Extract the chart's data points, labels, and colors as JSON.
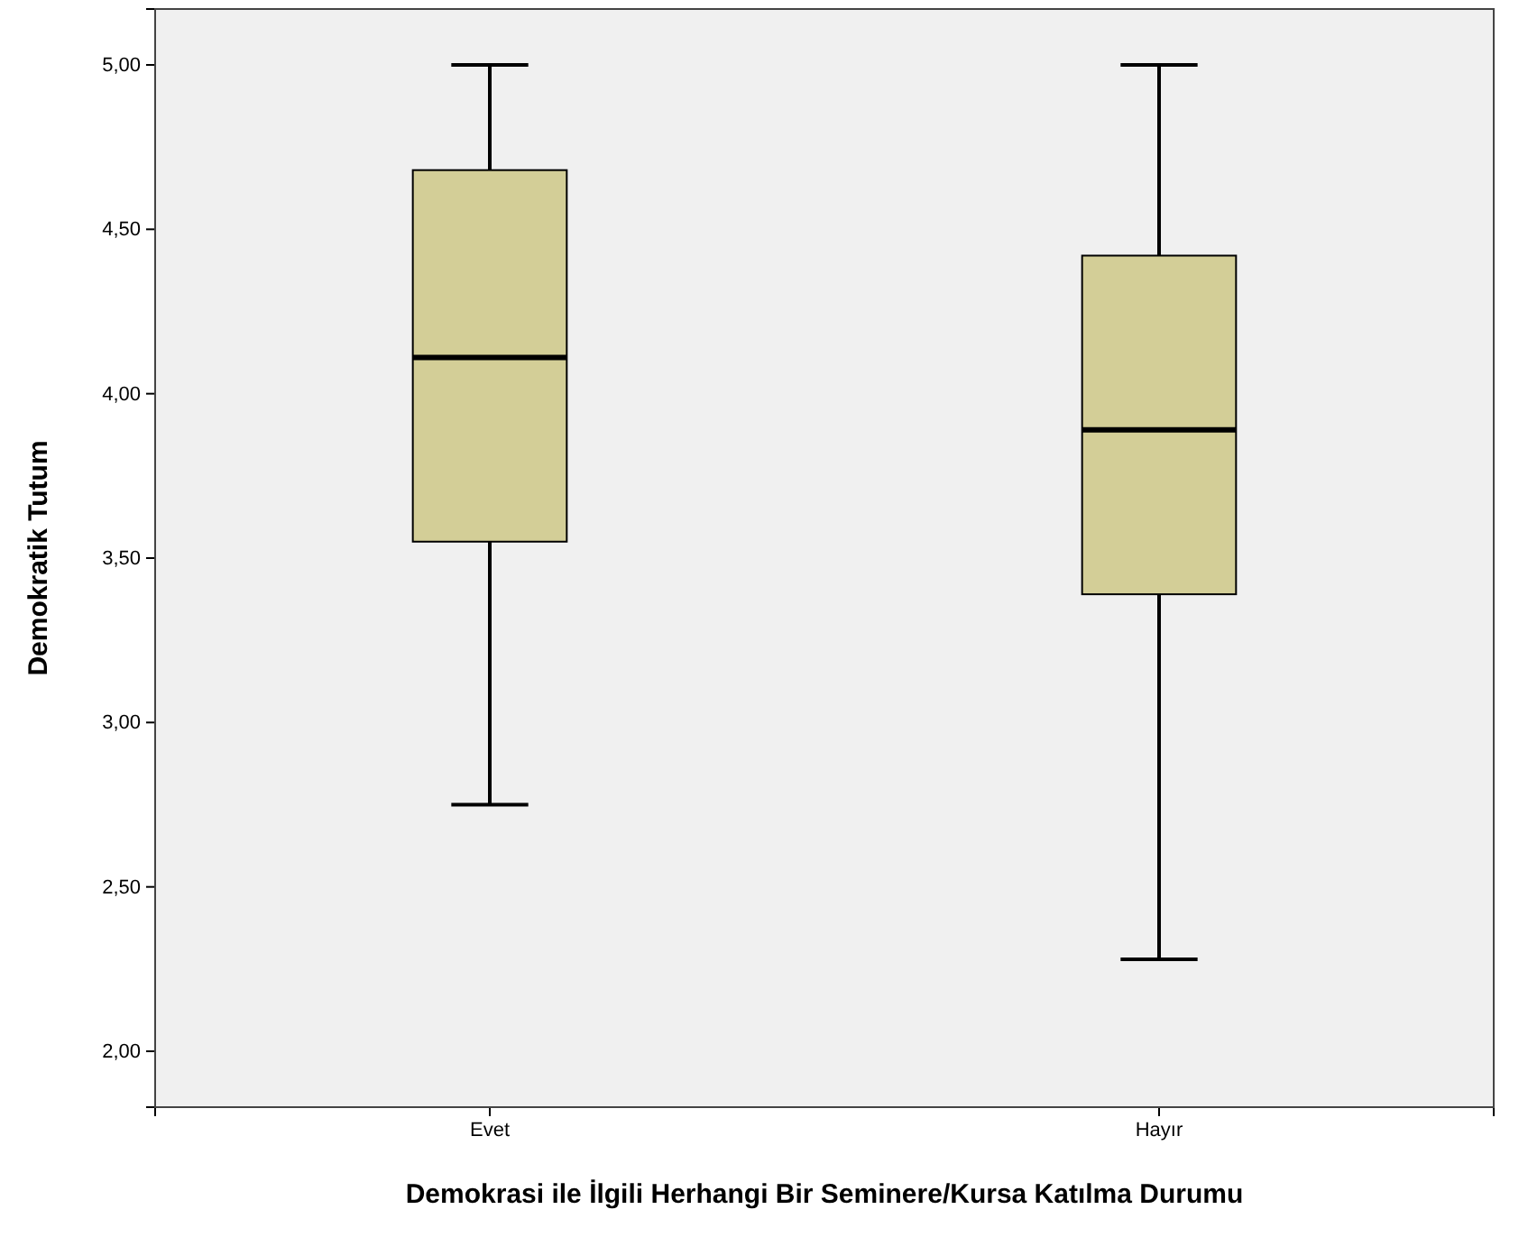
{
  "chart_data": {
    "type": "box",
    "xlabel": "Demokrasi ile İlgili Herhangi Bir Seminere/Kursa Katılma Durumu",
    "ylabel": "Demokratik Tutum",
    "categories": [
      "Evet",
      "Hayır"
    ],
    "boxes": [
      {
        "low": 2.75,
        "q1": 3.55,
        "median": 4.11,
        "q3": 4.68,
        "high": 5.0
      },
      {
        "low": 2.28,
        "q1": 3.39,
        "median": 3.89,
        "q3": 4.42,
        "high": 5.0
      }
    ],
    "color": "#d3ce97",
    "ylim": [
      1.83,
      5.17
    ],
    "yticks": [
      {
        "value": 2,
        "label": "2,00"
      },
      {
        "value": 2.5,
        "label": "2,50"
      },
      {
        "value": 3,
        "label": "3,00"
      },
      {
        "value": 3.5,
        "label": "3,50"
      },
      {
        "value": 4,
        "label": "4,00"
      },
      {
        "value": 4.5,
        "label": "4,50"
      },
      {
        "value": 5,
        "label": "5,00"
      }
    ]
  }
}
